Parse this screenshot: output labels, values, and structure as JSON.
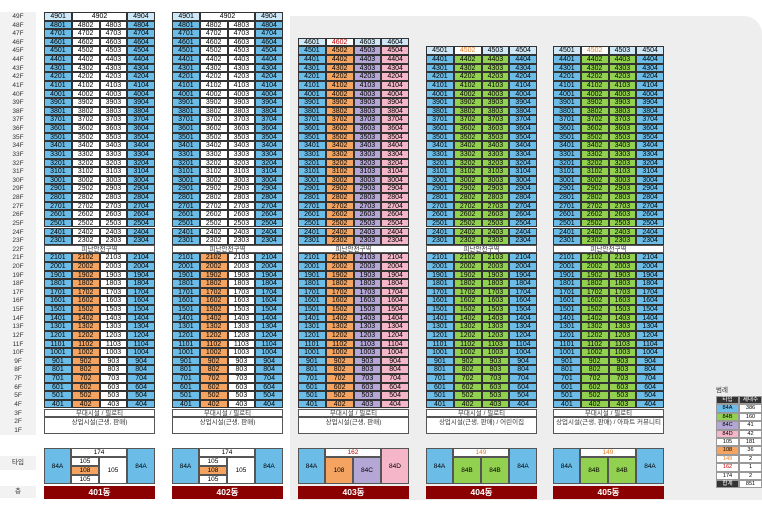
{
  "floors": [
    "49F",
    "48F",
    "47F",
    "46F",
    "45F",
    "44F",
    "43F",
    "42F",
    "41F",
    "40F",
    "39F",
    "38F",
    "37F",
    "36F",
    "35F",
    "34F",
    "33F",
    "32F",
    "31F",
    "30F",
    "29F",
    "28F",
    "27F",
    "26F",
    "25F",
    "24F",
    "23F",
    "22F",
    "21F",
    "20F",
    "19F",
    "18F",
    "17F",
    "16F",
    "15F",
    "14F",
    "13F",
    "12F",
    "11F",
    "10F",
    "9F",
    "8F",
    "7F",
    "6F",
    "5F",
    "4F",
    "3F",
    "2F",
    "1F",
    "타입",
    "층"
  ],
  "refuge_label": "피난안전구역",
  "colors": {
    "84A": "#6bbde8",
    "84B": "#92d050",
    "84C": "#b4a7d6",
    "84D": "#f4b6c8",
    "105": "#ffffff",
    "108": "#f4a460"
  },
  "buildings": [
    {
      "name": "401동",
      "top": 49,
      "upper_types": [
        "84A",
        "105",
        "105",
        "84A"
      ],
      "lower_types": [
        "84A",
        "108",
        "105",
        "84A"
      ],
      "top_label_class": [
        "",
        "",
        "",
        ""
      ],
      "support_label": "부대시설 / 필로티",
      "commercial_label": "상업시설(근생, 판매)",
      "type_blocks": [
        {
          "label": "84A",
          "cls": "c-blue",
          "x": 0,
          "y": 0,
          "w": 27,
          "h": 36
        },
        {
          "label": "174",
          "cls": "c-white",
          "x": 27,
          "y": 0,
          "w": 56,
          "h": 9
        },
        {
          "label": "105",
          "cls": "c-white",
          "x": 27,
          "y": 9,
          "w": 28,
          "h": 9
        },
        {
          "label": "108",
          "cls": "c-orange",
          "x": 27,
          "y": 18,
          "w": 28,
          "h": 9
        },
        {
          "label": "105",
          "cls": "c-white",
          "x": 27,
          "y": 27,
          "w": 28,
          "h": 9
        },
        {
          "label": "105",
          "cls": "c-white",
          "x": 55,
          "y": 9,
          "w": 28,
          "h": 27
        },
        {
          "label": "84A",
          "cls": "c-blue",
          "x": 83,
          "y": 0,
          "w": 28,
          "h": 36
        }
      ]
    },
    {
      "name": "402동",
      "top": 49,
      "upper_types": [
        "84A",
        "105",
        "105",
        "84A"
      ],
      "lower_types": [
        "84A",
        "108",
        "105",
        "84A"
      ],
      "top_label_class": [
        "",
        "",
        "",
        ""
      ],
      "support_label": "부대시설 / 필로티",
      "commercial_label": "상업시설(근생, 판매)",
      "type_blocks": [
        {
          "label": "84A",
          "cls": "c-blue",
          "x": 0,
          "y": 0,
          "w": 27,
          "h": 36
        },
        {
          "label": "174",
          "cls": "c-white",
          "x": 27,
          "y": 0,
          "w": 56,
          "h": 9
        },
        {
          "label": "105",
          "cls": "c-white",
          "x": 27,
          "y": 9,
          "w": 28,
          "h": 9
        },
        {
          "label": "108",
          "cls": "c-orange",
          "x": 27,
          "y": 18,
          "w": 28,
          "h": 9
        },
        {
          "label": "105",
          "cls": "c-white",
          "x": 27,
          "y": 27,
          "w": 28,
          "h": 9
        },
        {
          "label": "105",
          "cls": "c-white",
          "x": 55,
          "y": 9,
          "w": 28,
          "h": 27
        },
        {
          "label": "84A",
          "cls": "c-blue",
          "x": 83,
          "y": 0,
          "w": 28,
          "h": 36
        }
      ]
    },
    {
      "name": "403동",
      "top": 46,
      "upper_types": [
        "84A",
        "108",
        "84C",
        "84D"
      ],
      "lower_types": [
        "84A",
        "108",
        "84C",
        "84D"
      ],
      "top_label_class": [
        "",
        "c-rlbl",
        "",
        ""
      ],
      "support_label": "부대시설 / 필로티",
      "commercial_label": "상업시설(근생, 판매)",
      "type_blocks": [
        {
          "label": "84A",
          "cls": "c-blue",
          "x": 0,
          "y": 0,
          "w": 27,
          "h": 36
        },
        {
          "label": "162",
          "cls": "c-white c-rlbl",
          "x": 27,
          "y": 0,
          "w": 56,
          "h": 9
        },
        {
          "label": "108",
          "cls": "c-orange",
          "x": 27,
          "y": 9,
          "w": 28,
          "h": 27
        },
        {
          "label": "84C",
          "cls": "c-purple",
          "x": 55,
          "y": 9,
          "w": 28,
          "h": 27
        },
        {
          "label": "84D",
          "cls": "c-pink",
          "x": 83,
          "y": 0,
          "w": 28,
          "h": 36
        }
      ]
    },
    {
      "name": "404동",
      "top": 45,
      "upper_types": [
        "84A",
        "84B",
        "84B",
        "84A"
      ],
      "lower_types": [
        "84A",
        "84B",
        "84B",
        "84A"
      ],
      "top_label_class": [
        "",
        "c-olbl",
        "",
        ""
      ],
      "support_label": "부대시설 / 필로티",
      "commercial_label": "상업시설(근생, 판매) / 어린이집",
      "type_blocks": [
        {
          "label": "84A",
          "cls": "c-blue",
          "x": 0,
          "y": 0,
          "w": 27,
          "h": 36
        },
        {
          "label": "149",
          "cls": "c-white c-olbl",
          "x": 27,
          "y": 0,
          "w": 56,
          "h": 9
        },
        {
          "label": "84B",
          "cls": "c-green",
          "x": 27,
          "y": 9,
          "w": 28,
          "h": 27
        },
        {
          "label": "84B",
          "cls": "c-green",
          "x": 55,
          "y": 9,
          "w": 28,
          "h": 27
        },
        {
          "label": "84A",
          "cls": "c-blue",
          "x": 83,
          "y": 0,
          "w": 28,
          "h": 36
        }
      ]
    },
    {
      "name": "405동",
      "top": 45,
      "upper_types": [
        "84A",
        "84B",
        "84B",
        "84A"
      ],
      "lower_types": [
        "84A",
        "84B",
        "84B",
        "84A"
      ],
      "top_label_class": [
        "",
        "c-olbl",
        "",
        ""
      ],
      "support_label": "부대시설 / 필로티",
      "commercial_label": "상업시설(근생, 판매) / 아파트 커뮤니티",
      "type_blocks": [
        {
          "label": "84A",
          "cls": "c-blue",
          "x": 0,
          "y": 0,
          "w": 27,
          "h": 36
        },
        {
          "label": "149",
          "cls": "c-white c-olbl",
          "x": 27,
          "y": 0,
          "w": 56,
          "h": 9
        },
        {
          "label": "84B",
          "cls": "c-green",
          "x": 27,
          "y": 9,
          "w": 28,
          "h": 27
        },
        {
          "label": "84B",
          "cls": "c-green",
          "x": 55,
          "y": 9,
          "w": 28,
          "h": 27
        },
        {
          "label": "84A",
          "cls": "c-blue",
          "x": 83,
          "y": 0,
          "w": 28,
          "h": 36
        }
      ]
    }
  ],
  "legend": {
    "title": "범례",
    "headers": [
      "타입",
      "세대수"
    ],
    "rows": [
      {
        "type": "84A",
        "count": "386",
        "color": "#6bbde8"
      },
      {
        "type": "84B",
        "count": "160",
        "color": "#92d050"
      },
      {
        "type": "84C",
        "count": "41",
        "color": "#b4a7d6"
      },
      {
        "type": "84D",
        "count": "42",
        "color": "#f4b6c8"
      },
      {
        "type": "105",
        "count": "181",
        "color": "#ffffff"
      },
      {
        "type": "108",
        "count": "36",
        "color": "#f4a460"
      },
      {
        "type": "149",
        "count": "2",
        "color": "#ffffff"
      },
      {
        "type": "162",
        "count": "1",
        "color": "#ffffff"
      },
      {
        "type": "174",
        "count": "2",
        "color": "#ffffff"
      },
      {
        "type": "합계",
        "count": "851",
        "color": "#ffffff"
      }
    ]
  }
}
